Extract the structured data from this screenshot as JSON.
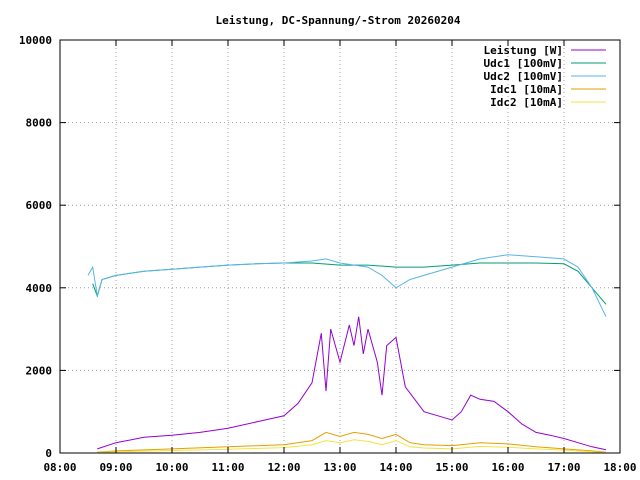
{
  "chart_data": {
    "type": "line",
    "title": "Leistung, DC-Spannung/-Strom 20260204",
    "xlabel": "",
    "ylabel": "",
    "xlim": [
      "08:00",
      "18:00"
    ],
    "ylim": [
      0,
      10000
    ],
    "x_ticks": [
      "08:00",
      "09:00",
      "10:00",
      "11:00",
      "12:00",
      "13:00",
      "14:00",
      "15:00",
      "16:00",
      "17:00",
      "18:00"
    ],
    "y_ticks": [
      "0",
      "2000",
      "4000",
      "6000",
      "8000",
      "10000"
    ],
    "grid": true,
    "legend_position": "top-right",
    "colors": {
      "leistung": "#9400d3",
      "udc1": "#009e73",
      "udc2": "#56b4e9",
      "idc1": "#e69f00",
      "idc2": "#f0e442"
    },
    "series": [
      {
        "name": "Leistung [W]",
        "key": "leistung",
        "x": [
          "08:40",
          "09:00",
          "09:30",
          "10:00",
          "10:30",
          "11:00",
          "11:30",
          "12:00",
          "12:15",
          "12:30",
          "12:40",
          "12:45",
          "12:50",
          "13:00",
          "13:10",
          "13:15",
          "13:20",
          "13:25",
          "13:30",
          "13:40",
          "13:45",
          "13:50",
          "14:00",
          "14:10",
          "14:20",
          "14:30",
          "14:45",
          "15:00",
          "15:10",
          "15:20",
          "15:30",
          "15:45",
          "16:00",
          "16:15",
          "16:30",
          "16:45",
          "17:00",
          "17:15",
          "17:30",
          "17:45"
        ],
        "y": [
          100,
          250,
          380,
          430,
          500,
          600,
          750,
          900,
          1200,
          1700,
          2900,
          1500,
          3000,
          2200,
          3100,
          2600,
          3300,
          2400,
          3000,
          2200,
          1400,
          2600,
          2800,
          1600,
          1300,
          1000,
          900,
          800,
          1000,
          1400,
          1300,
          1250,
          1000,
          700,
          500,
          430,
          350,
          250,
          150,
          80
        ]
      },
      {
        "name": "Udc1 [100mV]",
        "key": "udc1",
        "x": [
          "08:35",
          "08:40",
          "08:45",
          "09:00",
          "09:30",
          "10:00",
          "10:30",
          "11:00",
          "11:30",
          "12:00",
          "12:30",
          "13:00",
          "13:30",
          "14:00",
          "14:30",
          "15:00",
          "15:30",
          "16:00",
          "16:30",
          "17:00",
          "17:15",
          "17:30",
          "17:45"
        ],
        "y": [
          4100,
          3800,
          4200,
          4300,
          4400,
          4450,
          4500,
          4550,
          4580,
          4600,
          4600,
          4550,
          4550,
          4500,
          4500,
          4550,
          4600,
          4600,
          4600,
          4580,
          4400,
          4000,
          3600
        ]
      },
      {
        "name": "Udc2 [100mV]",
        "key": "udc2",
        "x": [
          "08:30",
          "08:35",
          "08:40",
          "08:45",
          "09:00",
          "09:30",
          "10:00",
          "10:30",
          "11:00",
          "11:30",
          "12:00",
          "12:30",
          "12:45",
          "13:00",
          "13:30",
          "13:45",
          "14:00",
          "14:15",
          "14:30",
          "15:00",
          "15:30",
          "16:00",
          "16:30",
          "17:00",
          "17:15",
          "17:30",
          "17:45"
        ],
        "y": [
          4300,
          4500,
          3800,
          4200,
          4300,
          4400,
          4450,
          4500,
          4550,
          4580,
          4600,
          4650,
          4700,
          4600,
          4500,
          4300,
          4000,
          4200,
          4300,
          4500,
          4700,
          4800,
          4750,
          4700,
          4500,
          4000,
          3300
        ]
      },
      {
        "name": "Idc1 [10mA]",
        "key": "idc1",
        "x": [
          "08:40",
          "09:00",
          "10:00",
          "11:00",
          "12:00",
          "12:30",
          "12:45",
          "13:00",
          "13:15",
          "13:30",
          "13:45",
          "14:00",
          "14:15",
          "14:30",
          "15:00",
          "15:30",
          "16:00",
          "16:30",
          "17:00",
          "17:30",
          "17:45"
        ],
        "y": [
          20,
          50,
          100,
          150,
          200,
          300,
          500,
          400,
          500,
          450,
          350,
          450,
          250,
          200,
          180,
          250,
          220,
          150,
          100,
          50,
          20
        ]
      },
      {
        "name": "Idc2 [10mA]",
        "key": "idc2",
        "x": [
          "08:40",
          "09:00",
          "10:00",
          "11:00",
          "12:00",
          "12:30",
          "12:45",
          "13:00",
          "13:15",
          "13:30",
          "13:45",
          "14:00",
          "14:15",
          "14:30",
          "15:00",
          "15:30",
          "16:00",
          "16:30",
          "17:00",
          "17:30",
          "17:45"
        ],
        "y": [
          10,
          30,
          60,
          90,
          130,
          200,
          300,
          250,
          320,
          280,
          200,
          300,
          150,
          120,
          100,
          160,
          140,
          100,
          70,
          30,
          10
        ]
      }
    ]
  }
}
